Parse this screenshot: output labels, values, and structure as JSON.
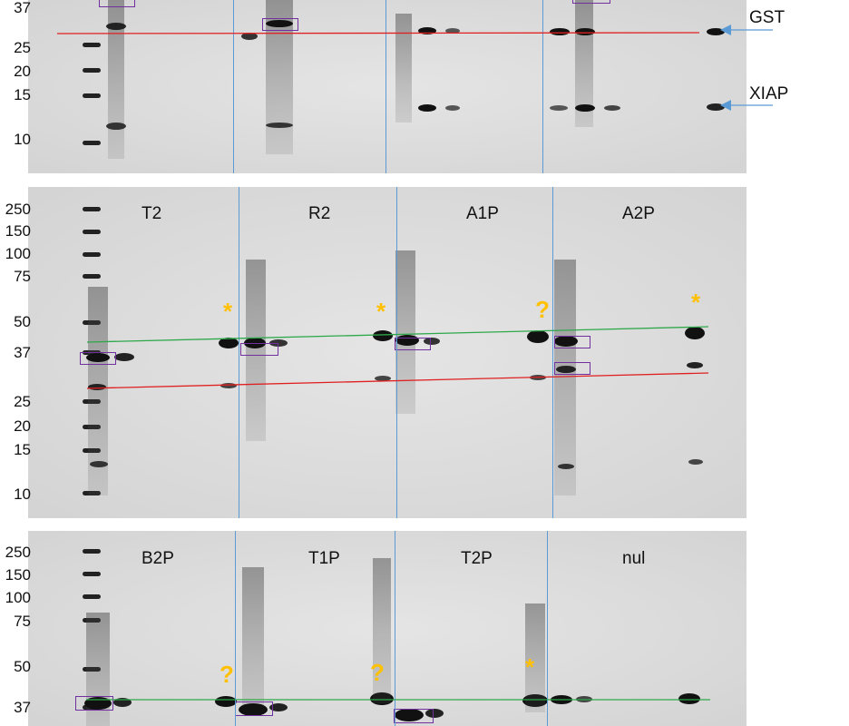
{
  "gel1": {
    "markers": [
      "37",
      "25",
      "20",
      "15",
      "10"
    ],
    "arrows": {
      "upper": "GST",
      "lower": "XIAP"
    }
  },
  "gel2": {
    "markers": [
      "250",
      "150",
      "100",
      "75",
      "50",
      "37",
      "25",
      "20",
      "15",
      "10"
    ],
    "lanes": [
      "T2",
      "R2",
      "A1P",
      "A2P"
    ],
    "annotations": [
      "*",
      "*",
      "?",
      "*"
    ]
  },
  "gel3": {
    "markers": [
      "250",
      "150",
      "100",
      "75",
      "50",
      "37"
    ],
    "lanes": [
      "B2P",
      "T1P",
      "T2P",
      "nul"
    ],
    "annotations": [
      "?",
      "?",
      "*"
    ]
  },
  "colors": {
    "red_line": "#e02020",
    "green_line": "#2ea84a",
    "blue_divider": "#5b9bd5",
    "box": "#7030a0",
    "annotation": "#ffc000",
    "arrow": "#5b9bd5"
  }
}
